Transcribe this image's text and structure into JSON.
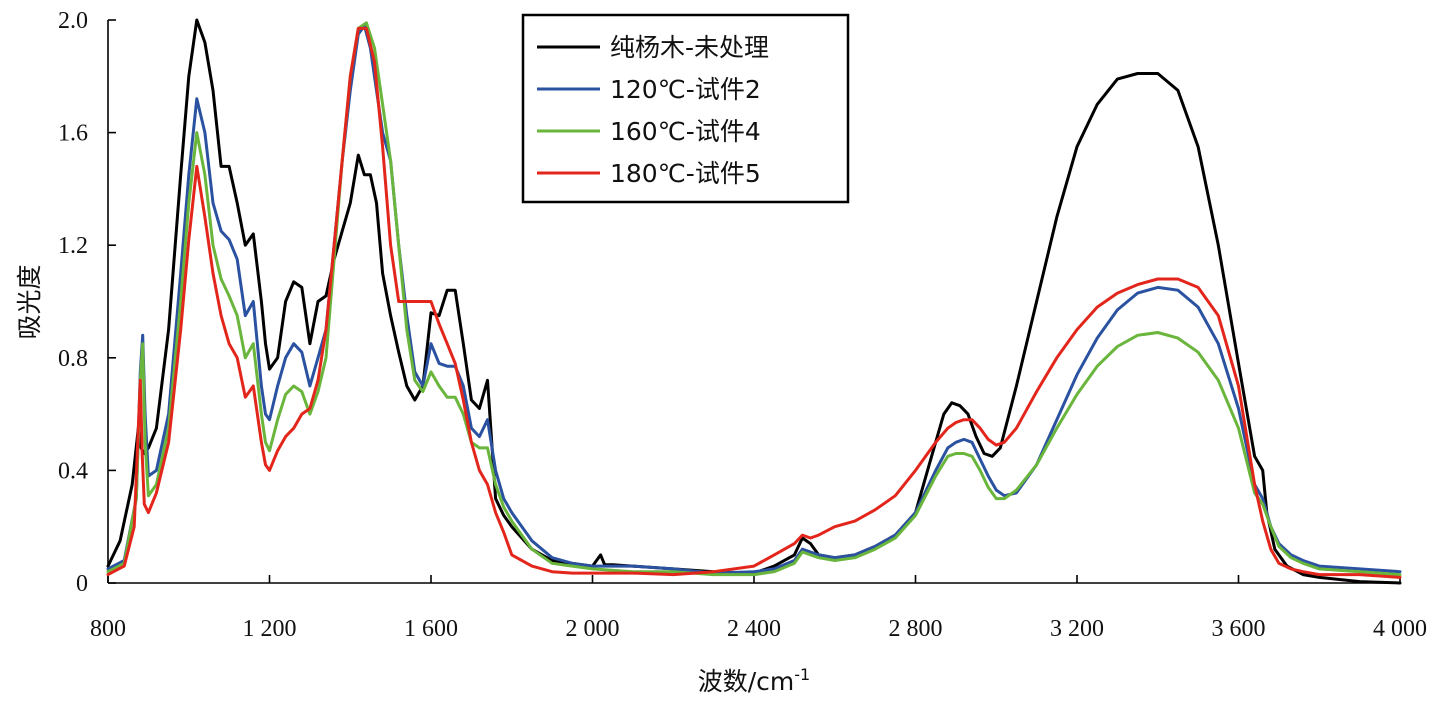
{
  "chart_data": {
    "type": "line",
    "title": "",
    "xlabel": "波数/cm",
    "xlabel_sup": "-1",
    "ylabel": "吸光度",
    "xlim": [
      800,
      4000
    ],
    "ylim": [
      0,
      2.0
    ],
    "xticks": [
      {
        "value": 800,
        "label": "800"
      },
      {
        "value": 1200,
        "label": "1 200"
      },
      {
        "value": 1600,
        "label": "1 600"
      },
      {
        "value": 2000,
        "label": "2 000"
      },
      {
        "value": 2400,
        "label": "2 400"
      },
      {
        "value": 2800,
        "label": "2 800"
      },
      {
        "value": 3200,
        "label": "3 200"
      },
      {
        "value": 3600,
        "label": "3 600"
      },
      {
        "value": 4000,
        "label": "4 000"
      }
    ],
    "yticks": [
      {
        "value": 0,
        "label": "0"
      },
      {
        "value": 0.4,
        "label": "0.4"
      },
      {
        "value": 0.8,
        "label": "0.8"
      },
      {
        "value": 1.2,
        "label": "1.2"
      },
      {
        "value": 1.6,
        "label": "1.6"
      },
      {
        "value": 2.0,
        "label": "2.0"
      }
    ],
    "grid": false,
    "legend_position": "top-center",
    "series": [
      {
        "name": "纯杨木-未处理",
        "color": "#000000",
        "x": [
          800,
          830,
          860,
          875,
          882,
          890,
          900,
          920,
          950,
          980,
          1000,
          1020,
          1040,
          1060,
          1080,
          1100,
          1120,
          1140,
          1160,
          1180,
          1190,
          1200,
          1220,
          1240,
          1260,
          1280,
          1300,
          1320,
          1340,
          1360,
          1380,
          1400,
          1420,
          1435,
          1450,
          1465,
          1480,
          1500,
          1520,
          1540,
          1560,
          1580,
          1600,
          1620,
          1640,
          1660,
          1680,
          1700,
          1720,
          1740,
          1760,
          1780,
          1800,
          1850,
          1900,
          1950,
          2000,
          2020,
          2030,
          2050,
          2100,
          2200,
          2300,
          2400,
          2450,
          2500,
          2520,
          2540,
          2560,
          2600,
          2650,
          2700,
          2750,
          2800,
          2840,
          2870,
          2890,
          2910,
          2930,
          2950,
          2970,
          2990,
          3010,
          3050,
          3100,
          3150,
          3200,
          3250,
          3300,
          3350,
          3400,
          3450,
          3500,
          3550,
          3600,
          3640,
          3660,
          3670,
          3690,
          3720,
          3760,
          3800,
          3900,
          4000
        ],
        "y": [
          0.06,
          0.15,
          0.35,
          0.55,
          0.48,
          0.46,
          0.48,
          0.55,
          0.9,
          1.45,
          1.8,
          2.0,
          1.92,
          1.75,
          1.48,
          1.48,
          1.35,
          1.2,
          1.24,
          1.0,
          0.85,
          0.76,
          0.8,
          1.0,
          1.07,
          1.05,
          0.85,
          1.0,
          1.02,
          1.15,
          1.25,
          1.35,
          1.52,
          1.45,
          1.45,
          1.35,
          1.1,
          0.95,
          0.82,
          0.7,
          0.65,
          0.7,
          0.96,
          0.95,
          1.04,
          1.04,
          0.85,
          0.65,
          0.62,
          0.72,
          0.3,
          0.24,
          0.2,
          0.12,
          0.08,
          0.07,
          0.06,
          0.1,
          0.065,
          0.065,
          0.06,
          0.05,
          0.04,
          0.035,
          0.06,
          0.1,
          0.16,
          0.14,
          0.1,
          0.09,
          0.1,
          0.13,
          0.17,
          0.25,
          0.45,
          0.6,
          0.64,
          0.63,
          0.6,
          0.52,
          0.46,
          0.45,
          0.48,
          0.7,
          1.0,
          1.3,
          1.55,
          1.7,
          1.79,
          1.81,
          1.81,
          1.75,
          1.55,
          1.2,
          0.78,
          0.45,
          0.4,
          0.25,
          0.12,
          0.06,
          0.03,
          0.02,
          0.005,
          0.0
        ]
      },
      {
        "name": "120℃-试件2",
        "color": "#2a52a0",
        "x": [
          800,
          840,
          870,
          880,
          886,
          892,
          900,
          920,
          950,
          980,
          1000,
          1020,
          1040,
          1060,
          1080,
          1100,
          1120,
          1140,
          1160,
          1180,
          1190,
          1200,
          1220,
          1240,
          1260,
          1280,
          1300,
          1320,
          1340,
          1360,
          1380,
          1400,
          1420,
          1435,
          1450,
          1465,
          1480,
          1500,
          1520,
          1540,
          1560,
          1580,
          1600,
          1620,
          1640,
          1660,
          1680,
          1700,
          1720,
          1740,
          1760,
          1780,
          1800,
          1850,
          1900,
          1950,
          2000,
          2100,
          2200,
          2300,
          2400,
          2450,
          2500,
          2520,
          2540,
          2560,
          2600,
          2650,
          2700,
          2750,
          2800,
          2850,
          2880,
          2900,
          2920,
          2940,
          2960,
          2980,
          3000,
          3020,
          3050,
          3100,
          3150,
          3200,
          3250,
          3300,
          3350,
          3400,
          3450,
          3500,
          3550,
          3600,
          3640,
          3660,
          3680,
          3700,
          3730,
          3760,
          3800,
          3900,
          4000
        ],
        "y": [
          0.05,
          0.08,
          0.3,
          0.75,
          0.88,
          0.6,
          0.38,
          0.4,
          0.6,
          1.1,
          1.45,
          1.72,
          1.6,
          1.35,
          1.25,
          1.22,
          1.15,
          0.95,
          1.0,
          0.7,
          0.6,
          0.58,
          0.7,
          0.8,
          0.85,
          0.82,
          0.7,
          0.8,
          0.9,
          1.2,
          1.5,
          1.75,
          1.95,
          1.98,
          1.9,
          1.75,
          1.6,
          1.5,
          1.2,
          0.95,
          0.75,
          0.7,
          0.85,
          0.78,
          0.77,
          0.77,
          0.7,
          0.55,
          0.52,
          0.58,
          0.4,
          0.3,
          0.25,
          0.15,
          0.09,
          0.07,
          0.06,
          0.06,
          0.05,
          0.035,
          0.04,
          0.05,
          0.08,
          0.12,
          0.11,
          0.1,
          0.09,
          0.1,
          0.13,
          0.17,
          0.25,
          0.4,
          0.48,
          0.5,
          0.51,
          0.5,
          0.44,
          0.38,
          0.33,
          0.31,
          0.32,
          0.42,
          0.58,
          0.74,
          0.87,
          0.97,
          1.03,
          1.05,
          1.04,
          0.98,
          0.85,
          0.62,
          0.35,
          0.3,
          0.2,
          0.14,
          0.1,
          0.08,
          0.06,
          0.05,
          0.04
        ]
      },
      {
        "name": "160℃-试件4",
        "color": "#6ab53c",
        "x": [
          800,
          840,
          870,
          880,
          886,
          892,
          900,
          920,
          950,
          980,
          1000,
          1020,
          1040,
          1060,
          1080,
          1100,
          1120,
          1140,
          1160,
          1180,
          1190,
          1200,
          1220,
          1240,
          1260,
          1280,
          1300,
          1320,
          1340,
          1360,
          1380,
          1400,
          1420,
          1440,
          1460,
          1480,
          1500,
          1520,
          1540,
          1560,
          1580,
          1600,
          1620,
          1640,
          1660,
          1680,
          1700,
          1720,
          1740,
          1760,
          1780,
          1800,
          1850,
          1900,
          1950,
          2000,
          2100,
          2200,
          2300,
          2400,
          2450,
          2500,
          2520,
          2540,
          2560,
          2600,
          2650,
          2700,
          2750,
          2800,
          2850,
          2880,
          2900,
          2920,
          2940,
          2960,
          2980,
          3000,
          3020,
          3050,
          3100,
          3150,
          3200,
          3250,
          3300,
          3350,
          3400,
          3450,
          3500,
          3550,
          3600,
          3640,
          3660,
          3680,
          3700,
          3730,
          3760,
          3800,
          3900,
          4000
        ],
        "y": [
          0.04,
          0.07,
          0.3,
          0.72,
          0.85,
          0.5,
          0.31,
          0.35,
          0.55,
          1.0,
          1.35,
          1.6,
          1.45,
          1.2,
          1.08,
          1.02,
          0.95,
          0.8,
          0.85,
          0.6,
          0.5,
          0.47,
          0.58,
          0.67,
          0.7,
          0.68,
          0.6,
          0.68,
          0.8,
          1.15,
          1.5,
          1.8,
          1.97,
          1.99,
          1.9,
          1.7,
          1.5,
          1.2,
          0.9,
          0.72,
          0.68,
          0.75,
          0.7,
          0.66,
          0.66,
          0.6,
          0.5,
          0.48,
          0.48,
          0.35,
          0.27,
          0.22,
          0.12,
          0.07,
          0.06,
          0.05,
          0.04,
          0.04,
          0.03,
          0.03,
          0.04,
          0.07,
          0.11,
          0.1,
          0.09,
          0.08,
          0.09,
          0.12,
          0.16,
          0.24,
          0.38,
          0.45,
          0.46,
          0.46,
          0.45,
          0.4,
          0.34,
          0.3,
          0.3,
          0.33,
          0.42,
          0.55,
          0.67,
          0.77,
          0.84,
          0.88,
          0.89,
          0.87,
          0.82,
          0.72,
          0.55,
          0.32,
          0.28,
          0.2,
          0.13,
          0.09,
          0.07,
          0.05,
          0.04,
          0.03
        ]
      },
      {
        "name": "180℃-试件5",
        "color": "#e3261c",
        "x": [
          800,
          840,
          865,
          875,
          880,
          885,
          890,
          900,
          920,
          950,
          980,
          1000,
          1020,
          1040,
          1060,
          1080,
          1100,
          1120,
          1140,
          1160,
          1180,
          1190,
          1200,
          1220,
          1240,
          1260,
          1280,
          1300,
          1320,
          1340,
          1360,
          1380,
          1400,
          1420,
          1440,
          1460,
          1480,
          1500,
          1520,
          1540,
          1560,
          1580,
          1600,
          1620,
          1640,
          1660,
          1680,
          1700,
          1720,
          1740,
          1760,
          1780,
          1800,
          1850,
          1900,
          1950,
          2000,
          2100,
          2200,
          2300,
          2400,
          2450,
          2500,
          2520,
          2540,
          2560,
          2600,
          2650,
          2700,
          2750,
          2800,
          2850,
          2880,
          2900,
          2920,
          2940,
          2960,
          2980,
          3000,
          3020,
          3050,
          3100,
          3150,
          3200,
          3250,
          3300,
          3350,
          3400,
          3450,
          3500,
          3550,
          3600,
          3640,
          3660,
          3680,
          3700,
          3730,
          3760,
          3800,
          3900,
          4000
        ],
        "y": [
          0.03,
          0.06,
          0.2,
          0.55,
          0.72,
          0.45,
          0.28,
          0.25,
          0.32,
          0.5,
          0.9,
          1.22,
          1.48,
          1.3,
          1.1,
          0.95,
          0.85,
          0.8,
          0.66,
          0.7,
          0.5,
          0.42,
          0.4,
          0.47,
          0.52,
          0.55,
          0.6,
          0.62,
          0.72,
          0.9,
          1.2,
          1.5,
          1.8,
          1.97,
          1.97,
          1.85,
          1.55,
          1.2,
          1.0,
          1.0,
          1.0,
          1.0,
          1.0,
          0.92,
          0.85,
          0.78,
          0.65,
          0.5,
          0.4,
          0.35,
          0.25,
          0.18,
          0.1,
          0.06,
          0.04,
          0.035,
          0.035,
          0.035,
          0.03,
          0.04,
          0.06,
          0.1,
          0.14,
          0.17,
          0.16,
          0.17,
          0.2,
          0.22,
          0.26,
          0.31,
          0.4,
          0.5,
          0.55,
          0.57,
          0.58,
          0.58,
          0.55,
          0.51,
          0.49,
          0.5,
          0.55,
          0.68,
          0.8,
          0.9,
          0.98,
          1.03,
          1.06,
          1.08,
          1.08,
          1.05,
          0.95,
          0.7,
          0.35,
          0.22,
          0.12,
          0.07,
          0.05,
          0.04,
          0.03,
          0.03,
          0.02
        ]
      }
    ]
  }
}
